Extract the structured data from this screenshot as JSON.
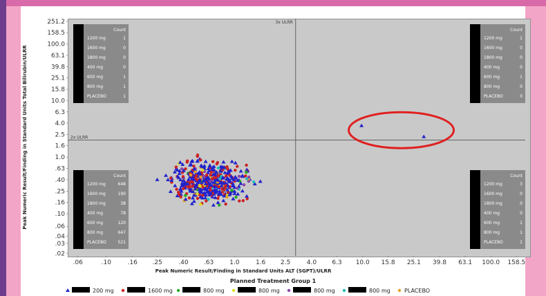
{
  "page": {
    "heading_text": "",
    "colors": {
      "background": "#f3a5c8",
      "accent_bar": "#6e3d8e",
      "highlight": "#e02020"
    }
  },
  "chart_data": {
    "type": "scatter",
    "title": "",
    "xlabel": "Peak Numeric Result/Finding in Standard Units ALT (SGPT)/ULRR",
    "ylabel": "Peak Numeric Result/Finding in Standard Units Total Bilirubin/ULRR",
    "x_scale": "log",
    "y_scale": "log",
    "x_ticks": [
      ".06",
      ".10",
      ".16",
      ".25",
      ".40",
      ".63",
      "1.0",
      "1.6",
      "2.5",
      "4.0",
      "6.3",
      "10.0",
      "15.8",
      "25.1",
      "39.8",
      "63.1",
      "100.0",
      "158.5"
    ],
    "y_ticks": [
      "251.2",
      "158.5",
      "100.0",
      "63.1",
      "39.8",
      "25.1",
      "15.8",
      "10.0",
      "6.3",
      "4.0",
      "2.5",
      "1.6",
      "1.0",
      ".63",
      ".40",
      ".25",
      ".16",
      ".10",
      ".06",
      ".04",
      ".03",
      ".02"
    ],
    "xlim": [
      0.05,
      200
    ],
    "ylim": [
      0.018,
      280
    ],
    "reference_lines": [
      {
        "axis": "x",
        "value": 3,
        "label": "3x ULRR"
      },
      {
        "axis": "y",
        "value": 2,
        "label": "2x ULRR"
      }
    ],
    "legend": {
      "title": "Planned Treatment Group 1",
      "placement": "bottom",
      "entries": [
        {
          "label": "200 mg",
          "color": "#2222cc",
          "marker": "triangle"
        },
        {
          "label": "1600 mg",
          "color": "#cc2222",
          "marker": "circle"
        },
        {
          "label": "800 mg",
          "color": "#22aa22",
          "marker": "circle"
        },
        {
          "label": "800 mg",
          "color": "#dddd22",
          "marker": "circle"
        },
        {
          "label": "800 mg",
          "color": "#8844aa",
          "marker": "circle"
        },
        {
          "label": "800 mg",
          "color": "#22bbbb",
          "marker": "circle"
        },
        {
          "label": "PLACEBO",
          "color": "#e8a020",
          "marker": "circle"
        }
      ]
    },
    "quadrant_boxes": [
      {
        "position": "top-left",
        "header": "Count",
        "rows": [
          [
            "1200 mg",
            "1"
          ],
          [
            "1600 mg",
            "0"
          ],
          [
            "1800 mg",
            "0"
          ],
          [
            "400 mg",
            "0"
          ],
          [
            "600 mg",
            "1"
          ],
          [
            "800 mg",
            "1"
          ],
          [
            "PLACEBO",
            "1"
          ]
        ]
      },
      {
        "position": "top-right",
        "header": "Count",
        "rows": [
          [
            "1200 mg",
            "1"
          ],
          [
            "1600 mg",
            "0"
          ],
          [
            "1800 mg",
            "0"
          ],
          [
            "400 mg",
            "0"
          ],
          [
            "600 mg",
            "1"
          ],
          [
            "800 mg",
            "0"
          ],
          [
            "PLACEBO",
            "0"
          ]
        ]
      },
      {
        "position": "bottom-left",
        "header": "Count",
        "rows": [
          [
            "1200 mg",
            "648"
          ],
          [
            "1600 mg",
            "190"
          ],
          [
            "1800 mg",
            "38"
          ],
          [
            "400 mg",
            "78"
          ],
          [
            "600 mg",
            "120"
          ],
          [
            "800 mg",
            "647"
          ],
          [
            "PLACEBO",
            "521"
          ]
        ]
      },
      {
        "position": "bottom-right",
        "header": "Count",
        "rows": [
          [
            "1200 mg",
            "3"
          ],
          [
            "1600 mg",
            "0"
          ],
          [
            "1800 mg",
            "0"
          ],
          [
            "400 mg",
            "0"
          ],
          [
            "600 mg",
            "1"
          ],
          [
            "800 mg",
            "1"
          ],
          [
            "PLACEBO",
            "1"
          ]
        ]
      }
    ],
    "highlighted_points": [
      {
        "x": 9.8,
        "y": 3.6,
        "color": "#2222cc",
        "marker": "triangle"
      },
      {
        "x": 30,
        "y": 2.3,
        "color": "#2222cc",
        "marker": "triangle"
      }
    ],
    "highlight_circle": {
      "cx": 20,
      "cy": 3.0,
      "color": "#e02020"
    },
    "main_cluster": {
      "x_center": 0.65,
      "y_center": 0.38,
      "x_spread": 2.0,
      "y_spread": 2.4,
      "dominant_color": "#2222cc",
      "secondary_color": "#cc2222"
    }
  }
}
